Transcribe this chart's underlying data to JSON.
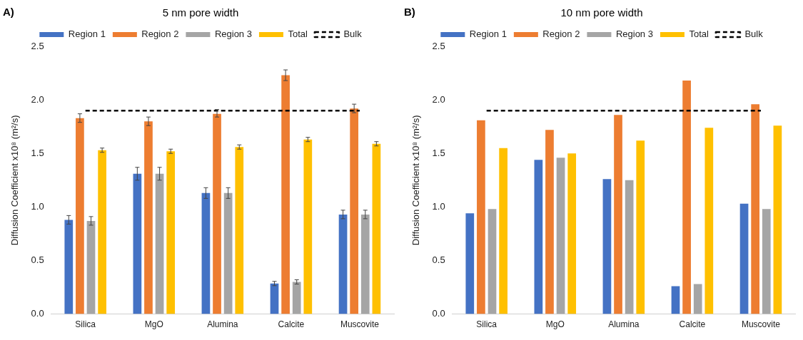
{
  "chart_data": [
    {
      "type": "bar",
      "title": "5 nm pore width",
      "ylabel": "Diffusion Coefficient x10⁸ (m²/s)",
      "annotations": [
        "A)"
      ],
      "categories": [
        "Silica",
        "MgO",
        "Alumina",
        "Calcite",
        "Muscovite"
      ],
      "ylim": [
        0,
        2.5
      ],
      "yticks": [
        {
          "value": 0,
          "label": "0.0"
        },
        {
          "value": 0.5,
          "label": "0.5"
        },
        {
          "value": 1,
          "label": "1.0"
        },
        {
          "value": 1.5,
          "label": "1.5"
        },
        {
          "value": 2,
          "label": "2.0"
        },
        {
          "value": 2.5,
          "label": "2.5"
        }
      ],
      "grid": false,
      "legend": "top",
      "series": [
        {
          "name": "Region 1",
          "color": "#4472c4",
          "values": [
            0.88,
            1.31,
            1.13,
            0.285,
            0.93
          ],
          "errors": [
            0.04,
            0.06,
            0.05,
            0.02,
            0.04
          ]
        },
        {
          "name": "Region 2",
          "color": "#ed7d31",
          "values": [
            1.83,
            1.8,
            1.87,
            2.23,
            1.92
          ],
          "errors": [
            0.04,
            0.04,
            [
              1.84,
              1.91
            ],
            0.05,
            0.04
          ]
        },
        {
          "name": "Region 3",
          "color": "#a5a5a5",
          "values": [
            0.87,
            1.31,
            1.13,
            0.3,
            0.93
          ],
          "errors": [
            0.04,
            0.06,
            0.05,
            0.02,
            0.04
          ]
        },
        {
          "name": "Total",
          "color": "#ffc000",
          "values": [
            1.53,
            1.52,
            1.56,
            1.63,
            1.59
          ],
          "errors": [
            0.02,
            0.02,
            0.02,
            0.02,
            0.02
          ]
        },
        {
          "name": "Bulk",
          "type": "line",
          "color": "#000000",
          "line_style": "dashed",
          "marker": "none",
          "values": [
            1.9,
            1.9,
            1.9,
            1.9,
            1.9
          ]
        }
      ]
    },
    {
      "type": "bar",
      "title": "10 nm pore width",
      "ylabel": "Diffusion Coefficient x10⁸ (m²/s)",
      "annotations": [
        "B)"
      ],
      "categories": [
        "Silica",
        "MgO",
        "Alumina",
        "Calcite",
        "Muscovite"
      ],
      "ylim": [
        0,
        2.5
      ],
      "yticks": [
        {
          "value": 0,
          "label": "0.0"
        },
        {
          "value": 0.5,
          "label": "0.5"
        },
        {
          "value": 1,
          "label": "1.0"
        },
        {
          "value": 1.5,
          "label": "1.5"
        },
        {
          "value": 2,
          "label": "2.0"
        },
        {
          "value": 2.5,
          "label": "2.5"
        }
      ],
      "grid": false,
      "legend": "top",
      "series": [
        {
          "name": "Region 1",
          "color": "#4472c4",
          "values": [
            0.94,
            1.44,
            1.26,
            0.26,
            1.03
          ]
        },
        {
          "name": "Region 2",
          "color": "#ed7d31",
          "values": [
            1.81,
            1.72,
            1.86,
            2.18,
            1.96
          ]
        },
        {
          "name": "Region 3",
          "color": "#a5a5a5",
          "values": [
            0.98,
            1.46,
            1.25,
            0.28,
            0.98
          ]
        },
        {
          "name": "Total",
          "color": "#ffc000",
          "values": [
            1.55,
            1.5,
            1.62,
            1.74,
            1.76
          ]
        },
        {
          "name": "Bulk",
          "type": "line",
          "color": "#000000",
          "line_style": "dashed",
          "marker": "none",
          "values": [
            1.9,
            1.9,
            1.9,
            1.9,
            1.9
          ]
        }
      ]
    }
  ]
}
